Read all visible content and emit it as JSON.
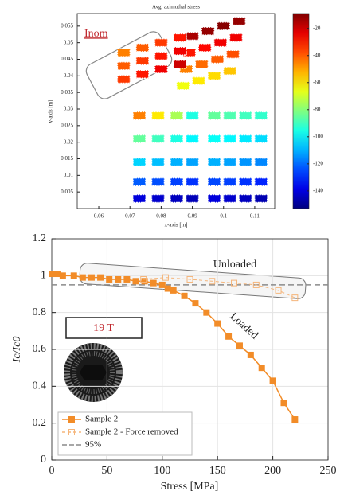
{
  "chart_data": [
    {
      "type": "scatter",
      "title": "Avg. azimuthal stress",
      "xlabel": "x-axis [m]",
      "ylabel": "y-axis [m]",
      "xlim": [
        0.0531,
        0.1164
      ],
      "xticks": [
        0.06,
        0.07,
        0.08,
        0.09,
        0.1,
        0.11
      ],
      "ylim": [
        0,
        0.0588
      ],
      "yticks": [
        0.005,
        0.01,
        0.015,
        0.02,
        0.025,
        0.03,
        0.035,
        0.04,
        0.045,
        0.05,
        0.055
      ],
      "colormap": "jet",
      "clim": [
        -153,
        -9
      ],
      "colorbar_ticks": [
        -20,
        -40,
        -60,
        -80,
        -100,
        -120,
        -140
      ],
      "annotations": [
        "Inom"
      ],
      "series": [
        {
          "x": [
            0.073,
            0.079,
            0.085,
            0.09,
            0.073,
            0.079,
            0.085,
            0.09,
            0.073,
            0.079,
            0.085,
            0.09,
            0.073,
            0.079,
            0.085,
            0.09,
            0.073,
            0.079,
            0.085,
            0.09
          ],
          "y": [
            0.028,
            0.028,
            0.028,
            0.028,
            0.021,
            0.021,
            0.021,
            0.021,
            0.014,
            0.014,
            0.014,
            0.014,
            0.008,
            0.008,
            0.008,
            0.008,
            0.003,
            0.003,
            0.003,
            0.003
          ],
          "values": [
            -45,
            -60,
            -75,
            -95,
            -85,
            -90,
            -95,
            -100,
            -105,
            -108,
            -110,
            -112,
            -122,
            -124,
            -126,
            -128,
            -140,
            -142,
            -144,
            -145
          ]
        },
        {
          "x": [
            0.097,
            0.102,
            0.107,
            0.112,
            0.097,
            0.102,
            0.107,
            0.112,
            0.097,
            0.102,
            0.107,
            0.112,
            0.097,
            0.102,
            0.107,
            0.112,
            0.097,
            0.102,
            0.107,
            0.112
          ],
          "y": [
            0.028,
            0.028,
            0.028,
            0.028,
            0.021,
            0.021,
            0.021,
            0.021,
            0.014,
            0.014,
            0.014,
            0.014,
            0.008,
            0.008,
            0.008,
            0.008,
            0.003,
            0.003,
            0.003,
            0.003
          ],
          "values": [
            -85,
            -88,
            -90,
            -92,
            -98,
            -100,
            -102,
            -104,
            -110,
            -112,
            -114,
            -116,
            -125,
            -126,
            -128,
            -130,
            -140,
            -142,
            -144,
            -146
          ]
        },
        {
          "x": [
            0.09,
            0.095,
            0.1,
            0.105,
            0.089,
            0.094,
            0.099,
            0.104,
            0.088,
            0.093,
            0.098,
            0.103,
            0.087,
            0.092,
            0.097,
            0.102
          ],
          "y": [
            0.052,
            0.0535,
            0.055,
            0.0565,
            0.047,
            0.0485,
            0.05,
            0.0515,
            0.042,
            0.0435,
            0.045,
            0.0465,
            0.037,
            0.0385,
            0.04,
            0.0415
          ],
          "values": [
            -15,
            -12,
            -10,
            -12,
            -30,
            -28,
            -25,
            -25,
            -45,
            -42,
            -40,
            -38,
            -65,
            -60,
            -58,
            -55
          ]
        },
        {
          "x": [
            0.068,
            0.074,
            0.08,
            0.086,
            0.068,
            0.074,
            0.08,
            0.086,
            0.068,
            0.074,
            0.08,
            0.086
          ],
          "y": [
            0.047,
            0.0485,
            0.05,
            0.0515,
            0.043,
            0.0445,
            0.046,
            0.0475,
            0.039,
            0.0405,
            0.042,
            0.0435
          ],
          "values": [
            -45,
            -40,
            -35,
            -30,
            -40,
            -35,
            -30,
            -25,
            -35,
            -30,
            -25,
            -20
          ]
        }
      ]
    },
    {
      "type": "line",
      "xlabel": "Stress [MPa]",
      "ylabel": "Ic/Ic0",
      "xlim": [
        0,
        250
      ],
      "xticks": [
        0,
        50,
        100,
        150,
        200,
        250
      ],
      "ylim": [
        0,
        1.2
      ],
      "yticks": [
        0,
        0.2,
        0.4,
        0.6,
        0.8,
        1,
        1.2
      ],
      "grid": true,
      "legend": "lower left",
      "annotations": [
        "Unloaded",
        "Loaded",
        "19 T"
      ],
      "series": [
        {
          "name": "Sample 2",
          "color": "#f28c28",
          "marker": "filled",
          "dashed": false,
          "x": [
            0,
            5,
            10,
            20,
            28,
            36,
            44,
            52,
            60,
            68,
            76,
            84,
            92,
            100,
            105,
            110,
            120,
            130,
            140,
            150,
            160,
            170,
            180,
            190,
            200,
            210,
            220
          ],
          "values": [
            1.01,
            1.01,
            1.0,
            1.0,
            0.99,
            0.99,
            0.99,
            0.98,
            0.98,
            0.98,
            0.97,
            0.97,
            0.96,
            0.95,
            0.93,
            0.92,
            0.89,
            0.85,
            0.8,
            0.74,
            0.67,
            0.62,
            0.57,
            0.5,
            0.43,
            0.31,
            0.22
          ]
        },
        {
          "name": "Sample 2 - Force removed",
          "color": "#f5b57a",
          "marker": "open",
          "dashed": true,
          "x": [
            83,
            103,
            125,
            145,
            165,
            185,
            205,
            220
          ],
          "values": [
            0.98,
            0.99,
            0.98,
            0.97,
            0.96,
            0.95,
            0.92,
            0.88
          ]
        }
      ],
      "reference_lines": [
        {
          "name": "95%",
          "value": 0.95,
          "color": "#8a8a8a"
        }
      ]
    }
  ]
}
